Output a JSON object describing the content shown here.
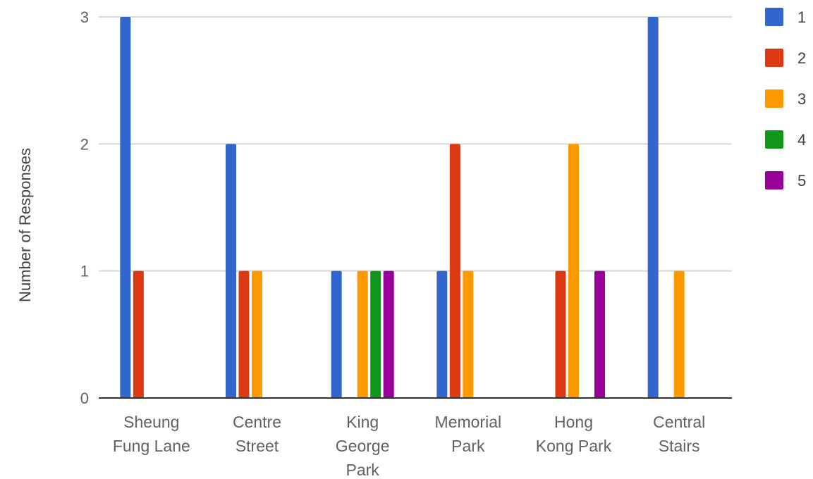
{
  "chart_data": {
    "type": "bar",
    "title": "",
    "xlabel": "",
    "ylabel": "Number of Responses",
    "ylim": [
      0,
      3
    ],
    "yticks": [
      "0",
      "1",
      "2",
      "3"
    ],
    "categories": [
      [
        "Sheung",
        "Fung Lane"
      ],
      [
        "Centre",
        "Street"
      ],
      [
        "King",
        "George",
        "Park"
      ],
      [
        "Memorial",
        "Park"
      ],
      [
        "Hong",
        "Kong Park"
      ],
      [
        "Central",
        "Stairs"
      ]
    ],
    "series": [
      {
        "name": "1",
        "color": "#3366cc",
        "values": [
          3,
          2,
          1,
          1,
          0,
          3
        ]
      },
      {
        "name": "2",
        "color": "#dc3912",
        "values": [
          1,
          1,
          0,
          2,
          1,
          0
        ]
      },
      {
        "name": "3",
        "color": "#ff9900",
        "values": [
          0,
          1,
          1,
          1,
          2,
          1
        ]
      },
      {
        "name": "4",
        "color": "#109618",
        "values": [
          0,
          0,
          1,
          0,
          0,
          0
        ]
      },
      {
        "name": "5",
        "color": "#990099",
        "values": [
          0,
          0,
          1,
          0,
          1,
          0
        ]
      }
    ],
    "grid": true,
    "legend_position": "right"
  }
}
